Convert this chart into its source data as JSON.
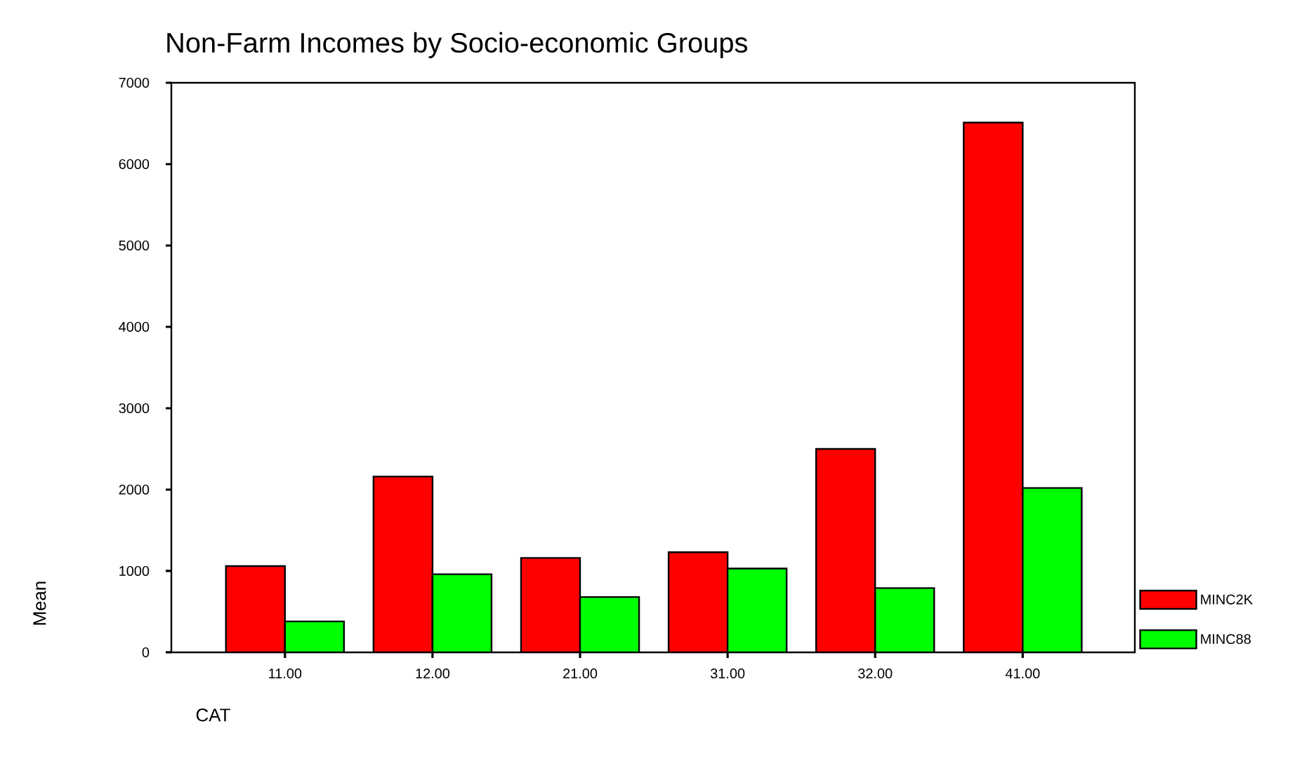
{
  "chart_data": {
    "type": "bar",
    "title": "Non-Farm Incomes by Socio-economic Groups",
    "xlabel": "CAT",
    "ylabel": "Mean",
    "categories": [
      "11.00",
      "12.00",
      "21.00",
      "31.00",
      "32.00",
      "41.00"
    ],
    "series": [
      {
        "name": "MINC2K",
        "color": "#ff0000",
        "values": [
          1060,
          2160,
          1160,
          1230,
          2500,
          6510
        ]
      },
      {
        "name": "MINC88",
        "color": "#00ff00",
        "values": [
          380,
          960,
          680,
          1030,
          790,
          2020
        ]
      }
    ],
    "ylim": [
      0,
      7000
    ],
    "yticks": [
      0,
      1000,
      2000,
      3000,
      4000,
      5000,
      6000,
      7000
    ],
    "grid": false,
    "legend": "bottom right"
  }
}
